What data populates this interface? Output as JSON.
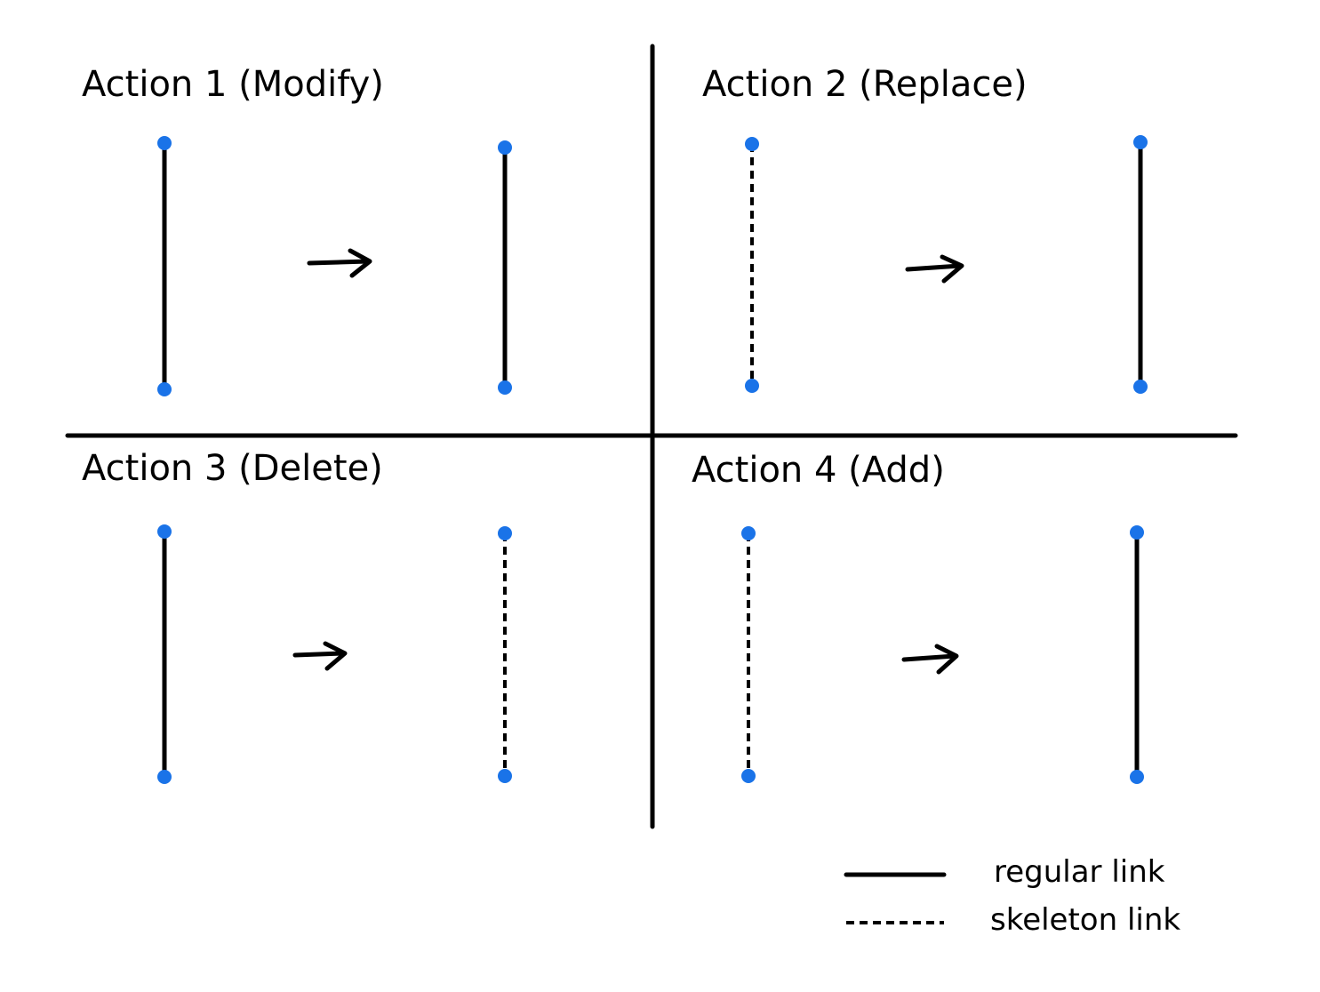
{
  "colors": {
    "ink": "#000000",
    "node": "#1a73e8"
  },
  "panels": [
    {
      "title": "Action 1 (Modify)",
      "before": "regular",
      "after": "regular"
    },
    {
      "title": "Action 2 (Replace)",
      "before": "skeleton",
      "after": "regular"
    },
    {
      "title": "Action 3 (Delete)",
      "before": "regular",
      "after": "skeleton"
    },
    {
      "title": "Action 4 (Add)",
      "before": "skeleton",
      "after": "regular"
    }
  ],
  "legend": {
    "regular": "regular link",
    "skeleton": "skeleton link"
  }
}
